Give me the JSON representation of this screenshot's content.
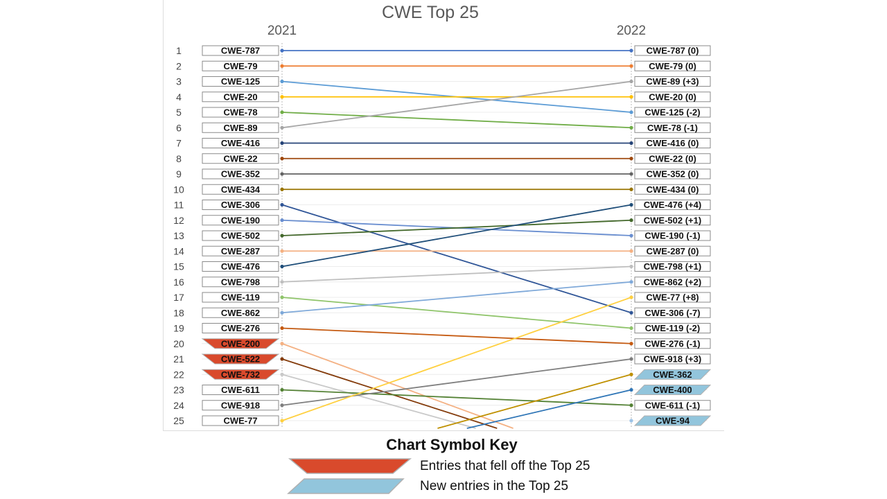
{
  "chart_data": {
    "type": "slope",
    "title": "CWE Top 25",
    "years": [
      "2021",
      "2022"
    ],
    "ranks": [
      1,
      2,
      3,
      4,
      5,
      6,
      7,
      8,
      9,
      10,
      11,
      12,
      13,
      14,
      15,
      16,
      17,
      18,
      19,
      20,
      21,
      22,
      23,
      24,
      25
    ],
    "left_entries": [
      {
        "rank": 1,
        "label": "CWE-787",
        "status": "kept"
      },
      {
        "rank": 2,
        "label": "CWE-79",
        "status": "kept"
      },
      {
        "rank": 3,
        "label": "CWE-125",
        "status": "kept"
      },
      {
        "rank": 4,
        "label": "CWE-20",
        "status": "kept"
      },
      {
        "rank": 5,
        "label": "CWE-78",
        "status": "kept"
      },
      {
        "rank": 6,
        "label": "CWE-89",
        "status": "kept"
      },
      {
        "rank": 7,
        "label": "CWE-416",
        "status": "kept"
      },
      {
        "rank": 8,
        "label": "CWE-22",
        "status": "kept"
      },
      {
        "rank": 9,
        "label": "CWE-352",
        "status": "kept"
      },
      {
        "rank": 10,
        "label": "CWE-434",
        "status": "kept"
      },
      {
        "rank": 11,
        "label": "CWE-306",
        "status": "kept"
      },
      {
        "rank": 12,
        "label": "CWE-190",
        "status": "kept"
      },
      {
        "rank": 13,
        "label": "CWE-502",
        "status": "kept"
      },
      {
        "rank": 14,
        "label": "CWE-287",
        "status": "kept"
      },
      {
        "rank": 15,
        "label": "CWE-476",
        "status": "kept"
      },
      {
        "rank": 16,
        "label": "CWE-798",
        "status": "kept"
      },
      {
        "rank": 17,
        "label": "CWE-119",
        "status": "kept"
      },
      {
        "rank": 18,
        "label": "CWE-862",
        "status": "kept"
      },
      {
        "rank": 19,
        "label": "CWE-276",
        "status": "kept"
      },
      {
        "rank": 20,
        "label": "CWE-200",
        "status": "fell_off"
      },
      {
        "rank": 21,
        "label": "CWE-522",
        "status": "fell_off"
      },
      {
        "rank": 22,
        "label": "CWE-732",
        "status": "fell_off"
      },
      {
        "rank": 23,
        "label": "CWE-611",
        "status": "kept"
      },
      {
        "rank": 24,
        "label": "CWE-918",
        "status": "kept"
      },
      {
        "rank": 25,
        "label": "CWE-77",
        "status": "kept"
      }
    ],
    "right_entries": [
      {
        "rank": 1,
        "label": "CWE-787 (0)",
        "status": "kept"
      },
      {
        "rank": 2,
        "label": "CWE-79 (0)",
        "status": "kept"
      },
      {
        "rank": 3,
        "label": "CWE-89 (+3)",
        "status": "kept"
      },
      {
        "rank": 4,
        "label": "CWE-20 (0)",
        "status": "kept"
      },
      {
        "rank": 5,
        "label": "CWE-125 (-2)",
        "status": "kept"
      },
      {
        "rank": 6,
        "label": "CWE-78 (-1)",
        "status": "kept"
      },
      {
        "rank": 7,
        "label": "CWE-416 (0)",
        "status": "kept"
      },
      {
        "rank": 8,
        "label": "CWE-22 (0)",
        "status": "kept"
      },
      {
        "rank": 9,
        "label": "CWE-352 (0)",
        "status": "kept"
      },
      {
        "rank": 10,
        "label": "CWE-434 (0)",
        "status": "kept"
      },
      {
        "rank": 11,
        "label": "CWE-476 (+4)",
        "status": "kept"
      },
      {
        "rank": 12,
        "label": "CWE-502 (+1)",
        "status": "kept"
      },
      {
        "rank": 13,
        "label": "CWE-190 (-1)",
        "status": "kept"
      },
      {
        "rank": 14,
        "label": "CWE-287 (0)",
        "status": "kept"
      },
      {
        "rank": 15,
        "label": "CWE-798 (+1)",
        "status": "kept"
      },
      {
        "rank": 16,
        "label": "CWE-862 (+2)",
        "status": "kept"
      },
      {
        "rank": 17,
        "label": "CWE-77 (+8)",
        "status": "kept"
      },
      {
        "rank": 18,
        "label": "CWE-306 (-7)",
        "status": "kept"
      },
      {
        "rank": 19,
        "label": "CWE-119 (-2)",
        "status": "kept"
      },
      {
        "rank": 20,
        "label": "CWE-276 (-1)",
        "status": "kept"
      },
      {
        "rank": 21,
        "label": "CWE-918 (+3)",
        "status": "kept"
      },
      {
        "rank": 22,
        "label": "CWE-362",
        "status": "new"
      },
      {
        "rank": 23,
        "label": "CWE-400",
        "status": "new"
      },
      {
        "rank": 24,
        "label": "CWE-611 (-1)",
        "status": "kept"
      },
      {
        "rank": 25,
        "label": "CWE-94",
        "status": "new"
      }
    ],
    "series": [
      {
        "x": [
          1,
          1
        ],
        "color": "#4472c4"
      },
      {
        "x": [
          2,
          2
        ],
        "color": "#ed7d31"
      },
      {
        "x": [
          3,
          5
        ],
        "color": "#5b9bd5"
      },
      {
        "x": [
          4,
          4
        ],
        "color": "#ffc000"
      },
      {
        "x": [
          5,
          6
        ],
        "color": "#70ad47"
      },
      {
        "x": [
          6,
          3
        ],
        "color": "#a5a5a5"
      },
      {
        "x": [
          7,
          7
        ],
        "color": "#264478"
      },
      {
        "x": [
          8,
          8
        ],
        "color": "#9e480e"
      },
      {
        "x": [
          9,
          9
        ],
        "color": "#636363"
      },
      {
        "x": [
          10,
          10
        ],
        "color": "#997300"
      },
      {
        "x": [
          11,
          18
        ],
        "color": "#2f5597"
      },
      {
        "x": [
          12,
          13
        ],
        "color": "#698ed0"
      },
      {
        "x": [
          13,
          12
        ],
        "color": "#43682b"
      },
      {
        "x": [
          14,
          14
        ],
        "color": "#f4b183"
      },
      {
        "x": [
          15,
          11
        ],
        "color": "#1f4e79"
      },
      {
        "x": [
          16,
          15
        ],
        "color": "#bfbfbf"
      },
      {
        "x": [
          17,
          19
        ],
        "color": "#8fc46a"
      },
      {
        "x": [
          18,
          16
        ],
        "color": "#7fa9d9"
      },
      {
        "x": [
          19,
          20
        ],
        "color": "#c55a11"
      },
      {
        "x": [
          20,
          28.3
        ],
        "color": "#f4b183"
      },
      {
        "x": [
          21,
          28.3
        ],
        "color": "#843c0c"
      },
      {
        "x": [
          22,
          28.3
        ],
        "color": "#c9c9c9"
      },
      {
        "x": [
          23,
          24
        ],
        "color": "#548235"
      },
      {
        "x": [
          24,
          21
        ],
        "color": "#7f7f7f"
      },
      {
        "x": [
          25,
          17
        ],
        "color": "#ffd040"
      },
      {
        "x": [
          28.3,
          22
        ],
        "color": "#bf9000"
      },
      {
        "x": [
          28.3,
          23
        ],
        "color": "#2e75b6"
      },
      {
        "x": [
          null,
          25
        ],
        "color": "#9dc3e6"
      }
    ],
    "fell_off_color": "#d94a2c",
    "new_color": "#92c5dc"
  },
  "key": {
    "title": "Chart Symbol Key",
    "fell_off_label": "Entries that fell off the Top 25",
    "new_label": "New entries in the Top 25"
  }
}
